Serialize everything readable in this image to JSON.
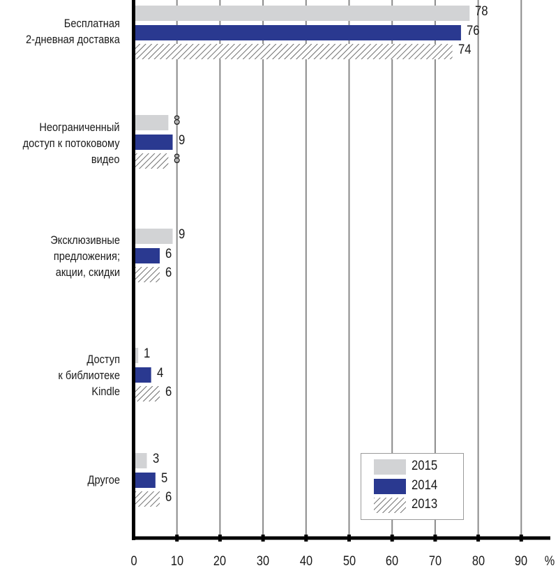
{
  "chart_data": {
    "type": "bar",
    "orientation": "horizontal",
    "title": "",
    "xlabel": "%",
    "ylabel": "",
    "xlim": [
      0,
      90
    ],
    "x_ticks": [
      "0",
      "10",
      "20",
      "30",
      "40",
      "50",
      "60",
      "70",
      "80",
      "90"
    ],
    "x_unit_label": "%",
    "grid": true,
    "legend_position": "lower right (inside)",
    "categories": [
      [
        "Бесплатная",
        "2-дневная доставка"
      ],
      [
        "Неограниченный",
        "доступ к потоковому",
        "видео"
      ],
      [
        "Эксклюзивные",
        "предложения;",
        "акции, скидки"
      ],
      [
        "Доступ",
        "к библиотеке",
        "Kindle"
      ],
      [
        "Другое"
      ]
    ],
    "series": [
      {
        "name": "2015",
        "color": "#d2d3d5",
        "pattern": "solid",
        "values": [
          78,
          8,
          9,
          1,
          3
        ]
      },
      {
        "name": "2014",
        "color": "#2a3990",
        "pattern": "solid",
        "values": [
          76,
          9,
          6,
          4,
          5
        ]
      },
      {
        "name": "2013",
        "color": "#555555",
        "pattern": "hatch",
        "values": [
          74,
          8,
          6,
          6,
          6
        ]
      }
    ]
  },
  "legend": {
    "items": [
      {
        "label": "2015"
      },
      {
        "label": "2014"
      },
      {
        "label": "2013"
      }
    ]
  }
}
